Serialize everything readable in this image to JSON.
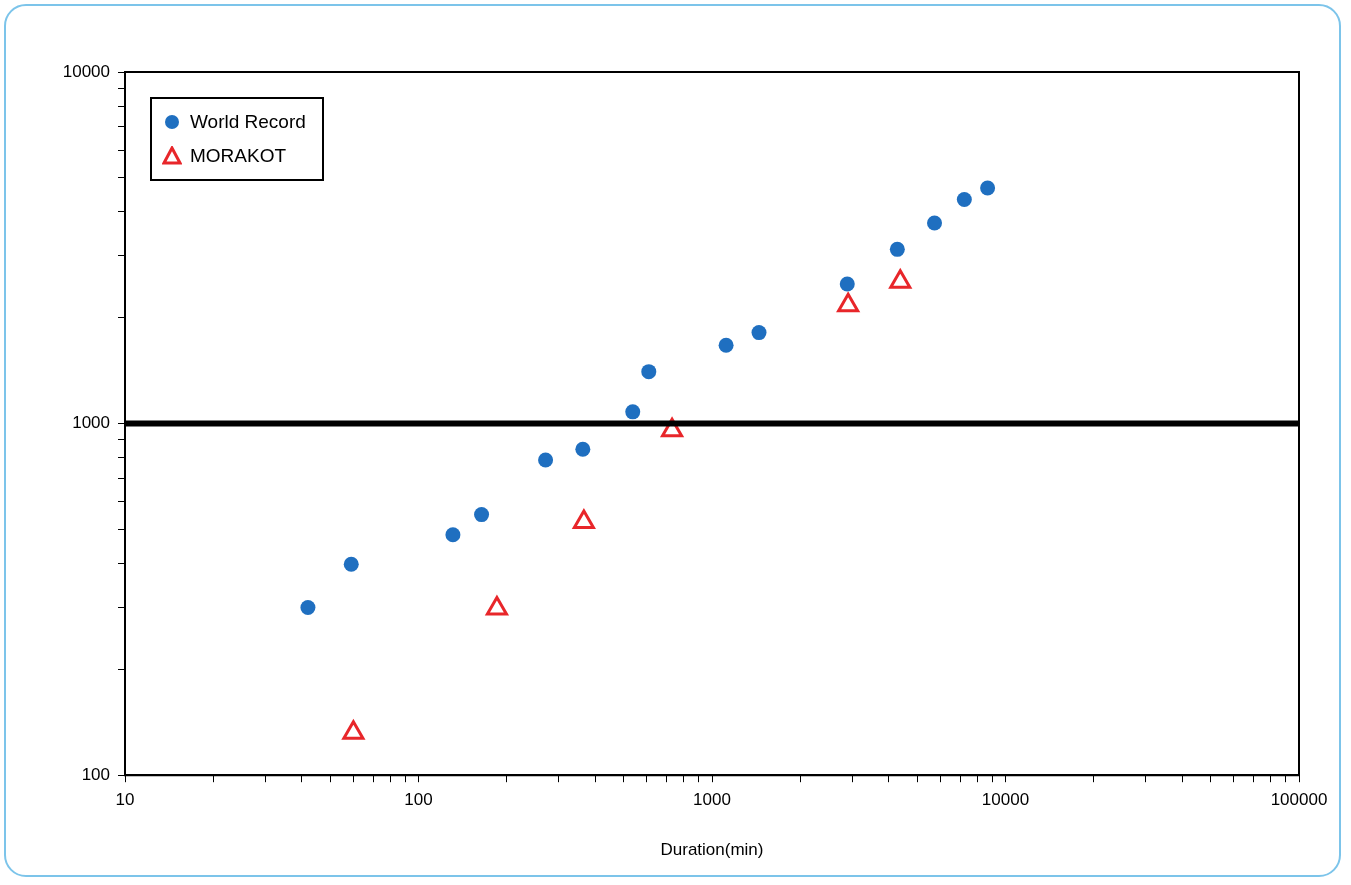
{
  "chart_data": {
    "type": "scatter",
    "xlabel": "Duration(min)",
    "log": "xy",
    "grid": false,
    "legend": "top left",
    "xlim": [
      10,
      100000
    ],
    "ylim": [
      100,
      10000
    ],
    "xticks": [
      10,
      {
        "value": 20,
        "label": null
      },
      {
        "value": 30,
        "label": null
      },
      {
        "value": 40,
        "label": null
      },
      {
        "value": 50,
        "label": null
      },
      {
        "value": 60,
        "label": null
      },
      {
        "value": 70,
        "label": null
      },
      {
        "value": 80,
        "label": null
      },
      {
        "value": 90,
        "label": null
      },
      100,
      {
        "value": 200,
        "label": null
      },
      {
        "value": 300,
        "label": null
      },
      {
        "value": 400,
        "label": null
      },
      {
        "value": 500,
        "label": null
      },
      {
        "value": 600,
        "label": null
      },
      {
        "value": 700,
        "label": null
      },
      {
        "value": 800,
        "label": null
      },
      {
        "value": 900,
        "label": null
      },
      1000,
      {
        "value": 2000,
        "label": null
      },
      {
        "value": 3000,
        "label": null
      },
      {
        "value": 4000,
        "label": null
      },
      {
        "value": 5000,
        "label": null
      },
      {
        "value": 6000,
        "label": null
      },
      {
        "value": 7000,
        "label": null
      },
      {
        "value": 8000,
        "label": null
      },
      {
        "value": 9000,
        "label": null
      },
      10000,
      {
        "value": 20000,
        "label": null
      },
      {
        "value": 30000,
        "label": null
      },
      {
        "value": 40000,
        "label": null
      },
      {
        "value": 50000,
        "label": null
      },
      {
        "value": 60000,
        "label": null
      },
      {
        "value": 70000,
        "label": null
      },
      {
        "value": 80000,
        "label": null
      },
      {
        "value": 90000,
        "label": null
      },
      100000
    ],
    "yticks": [
      100,
      {
        "value": 200,
        "label": null
      },
      {
        "value": 300,
        "label": null
      },
      {
        "value": 400,
        "label": null
      },
      {
        "value": 500,
        "label": null
      },
      {
        "value": 600,
        "label": null
      },
      {
        "value": 700,
        "label": null
      },
      {
        "value": 800,
        "label": null
      },
      {
        "value": 900,
        "label": null
      },
      1000,
      {
        "value": 2000,
        "label": null
      },
      {
        "value": 3000,
        "label": null
      },
      {
        "value": 4000,
        "label": null
      },
      {
        "value": 5000,
        "label": null
      },
      {
        "value": 6000,
        "label": null
      },
      {
        "value": 7000,
        "label": null
      },
      {
        "value": 8000,
        "label": null
      },
      {
        "value": 9000,
        "label": null
      },
      10000
    ],
    "ref_lines": [
      {
        "axis": "y",
        "value": 1000,
        "color": "#000000"
      }
    ],
    "series": [
      {
        "name": "World Record",
        "color": "#1f6fc0",
        "marker": "circle",
        "x": [
          42,
          59,
          131,
          164,
          271,
          363,
          537,
          609,
          1117,
          1446,
          2890,
          4280,
          5730,
          7240,
          8690
        ],
        "values": [
          300,
          398,
          483,
          551,
          788,
          845,
          1080,
          1405,
          1670,
          1815,
          2495,
          3130,
          3720,
          4340,
          4680
        ]
      },
      {
        "name": "MORAKOT",
        "color": "#e8262a",
        "marker": "triangle",
        "x": [
          60,
          185,
          366,
          731,
          2910,
          4380
        ],
        "values": [
          132,
          298,
          525,
          957,
          2170,
          2530
        ]
      }
    ]
  }
}
